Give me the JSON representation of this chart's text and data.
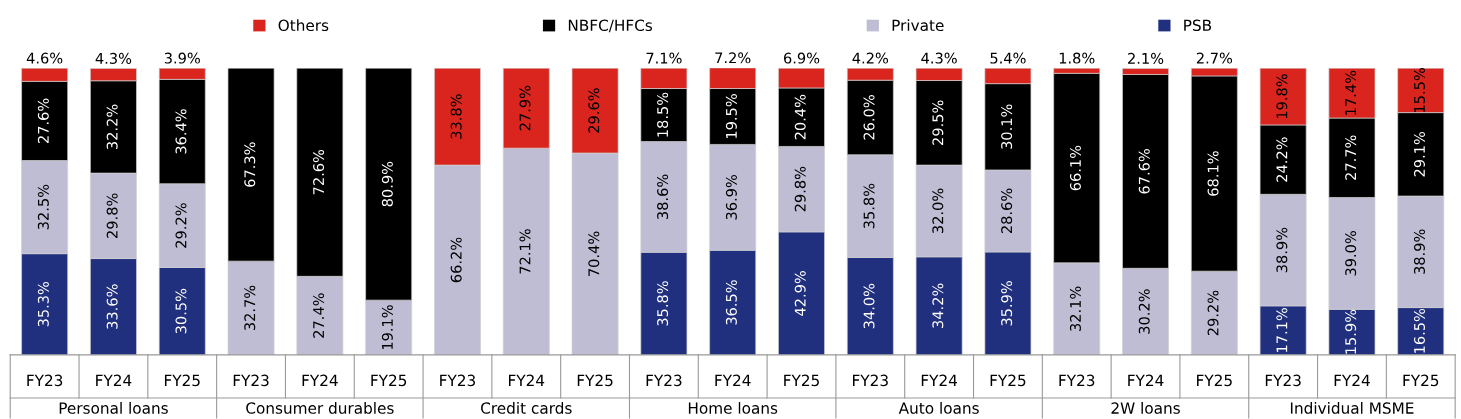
{
  "chart_data": {
    "type": "bar",
    "stacked": true,
    "legend": "top",
    "grid": false,
    "categories": [
      "FY23",
      "FY24",
      "FY25",
      "FY23",
      "FY24",
      "FY25",
      "FY23",
      "FY24",
      "FY25",
      "FY23",
      "FY24",
      "FY25",
      "FY23",
      "FY24",
      "FY25",
      "FY23",
      "FY24",
      "FY25",
      "FY23",
      "FY24",
      "FY25"
    ],
    "annotations": [
      "Personal loans",
      "Consumer durables",
      "Credit cards",
      "Home loans",
      "Auto loans",
      "2W loans",
      "Individual MSME"
    ],
    "series": [
      {
        "name": "PSB",
        "color": "#21307e",
        "values": [
          35.3,
          33.6,
          30.5,
          null,
          null,
          null,
          null,
          null,
          null,
          35.8,
          36.5,
          42.9,
          34.0,
          34.2,
          35.9,
          null,
          null,
          null,
          17.1,
          15.9,
          16.5
        ],
        "value_labels": [
          "35.3%",
          "33.6%",
          "30.5%",
          null,
          null,
          null,
          null,
          null,
          null,
          "35.8%",
          "36.5%",
          "42.9%",
          "34.0%",
          "34.2%",
          "35.9%",
          null,
          null,
          null,
          "17.1%",
          "15.9%",
          "16.5%"
        ]
      },
      {
        "name": "Private",
        "color": "#bfbdd4",
        "values": [
          32.5,
          29.8,
          29.2,
          32.7,
          27.4,
          19.1,
          66.2,
          72.1,
          70.4,
          38.6,
          36.9,
          29.8,
          35.8,
          32.0,
          28.6,
          32.1,
          30.2,
          29.2,
          38.9,
          39.0,
          38.9
        ],
        "value_labels": [
          "32.5%",
          "29.8%",
          "29.2%",
          "32.7%",
          "27.4%",
          "19.1%",
          "66.2%",
          "72.1%",
          "70.4%",
          "38.6%",
          "36.9%",
          "29.8%",
          "35.8%",
          "32.0%",
          "28.6%",
          "32.1%",
          "30.2%",
          "29.2%",
          "38.9%",
          "39.0%",
          "38.9%"
        ]
      },
      {
        "name": "NBFC/HFCs",
        "color": "#000000",
        "values": [
          27.6,
          32.2,
          36.4,
          67.3,
          72.6,
          80.9,
          null,
          null,
          null,
          18.5,
          19.5,
          20.4,
          26.0,
          29.5,
          30.1,
          66.1,
          67.6,
          68.1,
          24.2,
          27.7,
          29.1
        ],
        "value_labels": [
          "27.6%",
          "32.2%",
          "36.4%",
          "67.3%",
          "72.6%",
          "80.9%",
          null,
          null,
          null,
          "18.5%",
          "19.5%",
          "20.4%",
          "26.0%",
          "29.5%",
          "30.1%",
          "66.1%",
          "67.6%",
          "68.1%",
          "24.2%",
          "27.7%",
          "29.1%"
        ]
      },
      {
        "name": "Others",
        "color": "#d9251d",
        "values": [
          4.6,
          4.3,
          3.9,
          null,
          null,
          null,
          33.8,
          27.9,
          29.6,
          7.1,
          7.2,
          6.9,
          4.2,
          4.3,
          5.4,
          1.8,
          2.1,
          2.7,
          19.8,
          17.4,
          15.5
        ],
        "value_labels": [
          "4.6%",
          "4.3%",
          "3.9%",
          null,
          null,
          null,
          "33.8%",
          "27.9%",
          "29.6%",
          "7.1%",
          "7.2%",
          "6.9%",
          "4.2%",
          "4.3%",
          "5.4%",
          "1.8%",
          "2.1%",
          "2.7%",
          "19.8%",
          "17.4%",
          "15.5%"
        ]
      }
    ]
  }
}
